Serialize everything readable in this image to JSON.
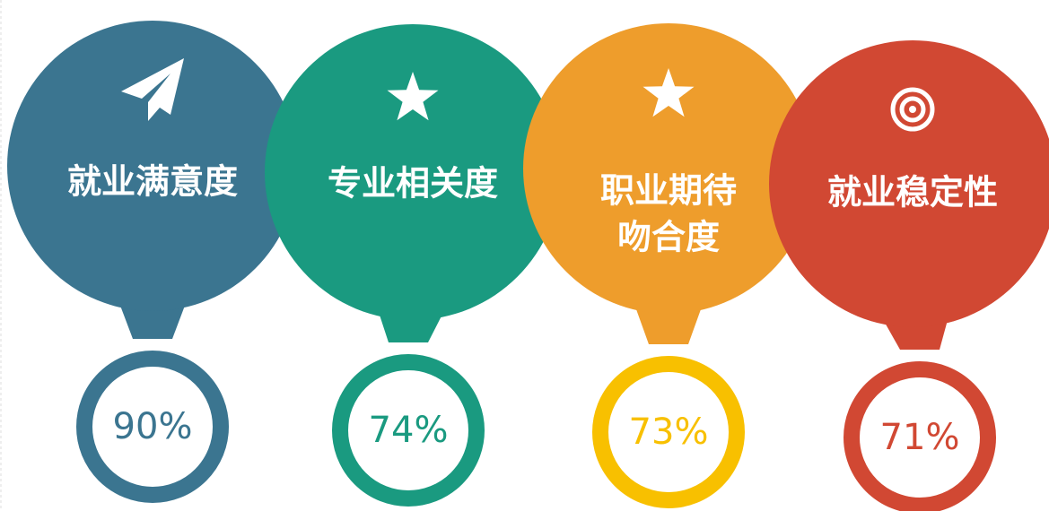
{
  "items": [
    {
      "title": [
        "就业满意度"
      ],
      "value": "90%",
      "color": "#3b7590",
      "ring_color": "#3b7590",
      "icon": "plane"
    },
    {
      "title": [
        "专业相关度"
      ],
      "value": "74%",
      "color": "#1a9a80",
      "ring_color": "#1a9a80",
      "icon": "star"
    },
    {
      "title": [
        "职业期待",
        "吻合度"
      ],
      "value": "73%",
      "color": "#ee9d2c",
      "ring_color": "#f8c000",
      "icon": "star"
    },
    {
      "title": [
        "就业稳定性"
      ],
      "value": "71%",
      "color": "#d14833",
      "ring_color": "#d14833",
      "icon": "target"
    }
  ]
}
